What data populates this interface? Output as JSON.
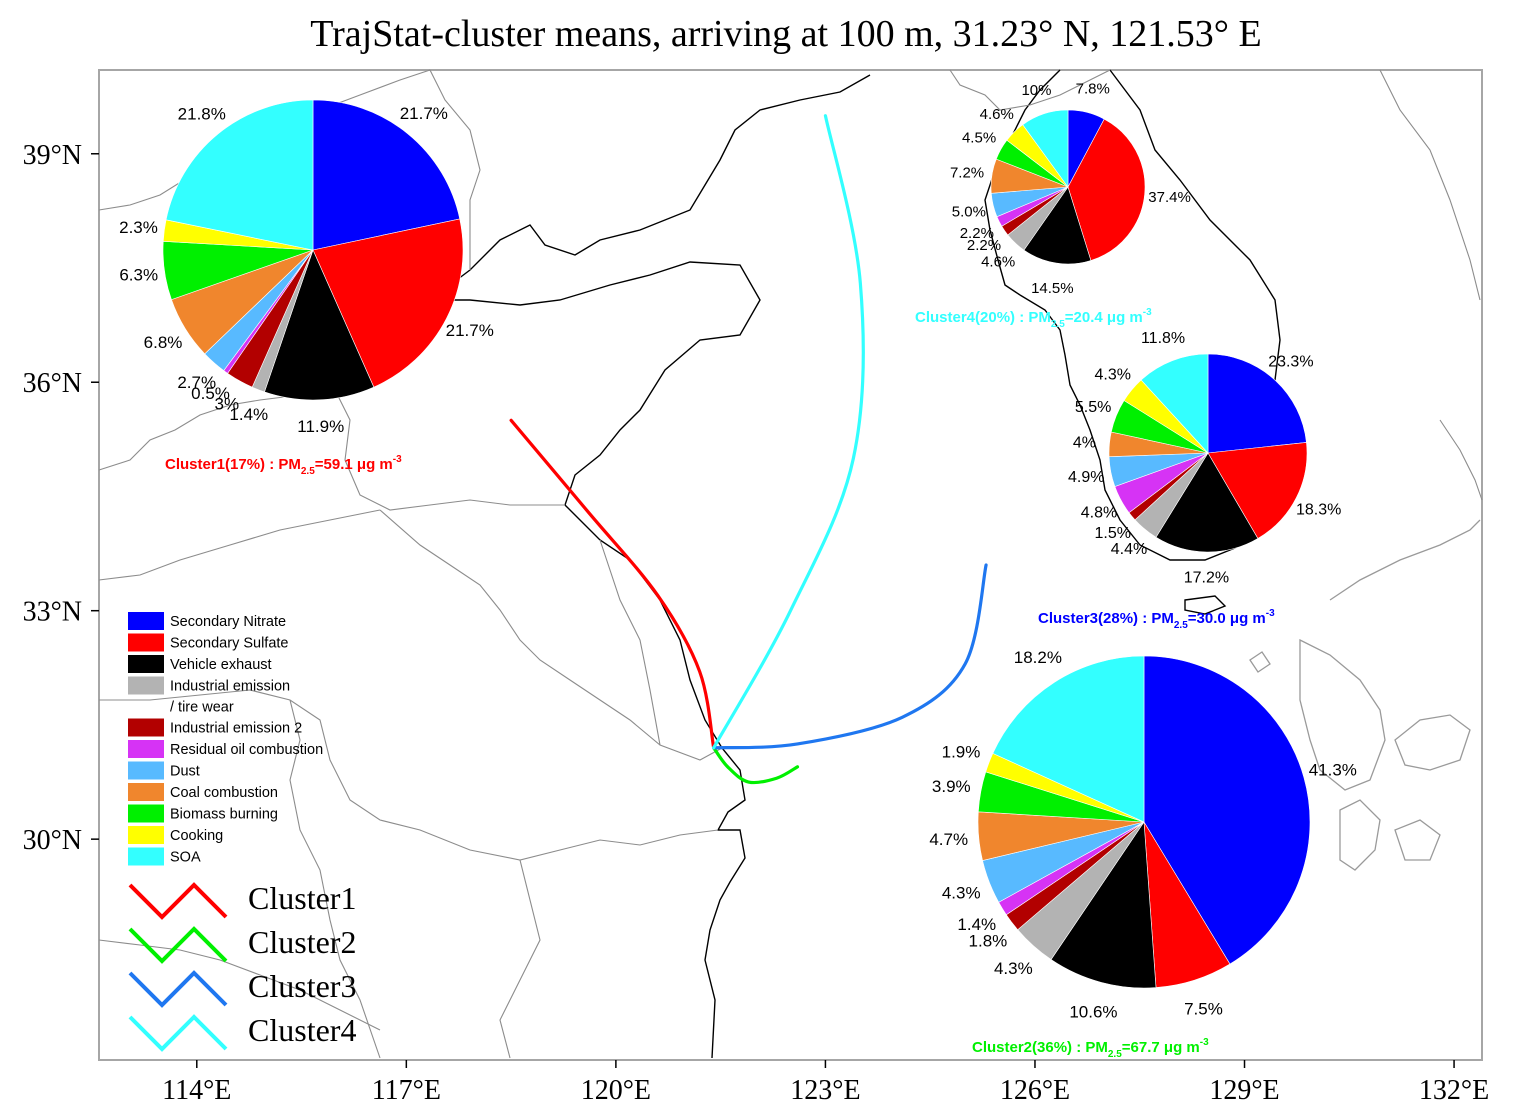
{
  "title": "TrajStat-cluster means, arriving at 100 m, 31.23° N, 121.53° E",
  "axes": {
    "x_ticks": [
      "114°E",
      "117°E",
      "120°E",
      "123°E",
      "126°E",
      "129°E",
      "132°E"
    ],
    "x_values": [
      114,
      117,
      120,
      123,
      126,
      129,
      132
    ],
    "y_ticks": [
      "39°N",
      "36°N",
      "33°N",
      "30°N"
    ],
    "y_values": [
      39,
      36,
      33,
      30
    ],
    "xlim": [
      112.6,
      132.4
    ],
    "ylim": [
      27.1,
      40.1
    ]
  },
  "colors": {
    "nitrate": "#0000ff",
    "sulfate": "#ff0000",
    "vehicle": "#000000",
    "industrial1": "#b3b3b3",
    "industrial2": "#b20000",
    "residual_oil": "#d633f5",
    "dust": "#58baff",
    "coal": "#f0862d",
    "biomass": "#00f000",
    "cooking": "#ffff00",
    "soa": "#33ffff",
    "cluster1": "#ff0000",
    "cluster2": "#00f000",
    "cluster3": "#1f77f0",
    "cluster4": "#33ffff",
    "coast": "#000000",
    "border": "#8c8c8c"
  },
  "legend": {
    "sources": [
      {
        "label": "Secondary Nitrate",
        "color": "#0000ff"
      },
      {
        "label": "Secondary Sulfate",
        "color": "#ff0000"
      },
      {
        "label": "Vehicle exhaust",
        "color": "#000000"
      },
      {
        "label": "Industrial emission",
        "label2": "/ tire wear",
        "color": "#b3b3b3"
      },
      {
        "label": "Industrial emission 2",
        "color": "#b20000"
      },
      {
        "label": "Residual  oil combustion",
        "color": "#d633f5"
      },
      {
        "label": "Dust",
        "color": "#58baff"
      },
      {
        "label": "Coal combustion",
        "color": "#f0862d"
      },
      {
        "label": "Biomass burning",
        "color": "#00f000"
      },
      {
        "label": "Cooking",
        "color": "#ffff00"
      },
      {
        "label": "SOA",
        "color": "#33ffff"
      }
    ],
    "clusters": [
      {
        "label": "Cluster1",
        "color": "#ff0000"
      },
      {
        "label": "Cluster2",
        "color": "#00f000"
      },
      {
        "label": "Cluster3",
        "color": "#1f77f0"
      },
      {
        "label": "Cluster4",
        "color": "#33ffff"
      }
    ]
  },
  "chart_data": [
    {
      "type": "pie",
      "name": "Cluster1",
      "caption": "Cluster1(17%) : PM2.5=59.1 μg m-3",
      "caption_color": "#ff0000",
      "categories": [
        "Secondary Nitrate",
        "Secondary Sulfate",
        "Vehicle exhaust",
        "Industrial emission / tire wear",
        "Industrial emission 2",
        "Residual oil combustion",
        "Dust",
        "Coal combustion",
        "Biomass burning",
        "Cooking",
        "SOA"
      ],
      "values": [
        21.7,
        21.7,
        11.9,
        1.4,
        3.0,
        0.5,
        2.7,
        6.8,
        6.3,
        2.3,
        21.8
      ],
      "labels": [
        "21.7%",
        "21.7%",
        "11.9%",
        "1.4%",
        "3%",
        "0.5%",
        "2.7%",
        "6.8%",
        "6.3%",
        "2.3%",
        "21.8%"
      ]
    },
    {
      "type": "pie",
      "name": "Cluster2",
      "caption": "Cluster2(36%) : PM2.5=67.7 μg m-3",
      "caption_color": "#00f000",
      "categories": [
        "Secondary Nitrate",
        "Secondary Sulfate",
        "Vehicle exhaust",
        "Industrial emission / tire wear",
        "Industrial emission 2",
        "Residual oil combustion",
        "Dust",
        "Coal combustion",
        "Biomass burning",
        "Cooking",
        "SOA"
      ],
      "values": [
        41.3,
        7.5,
        10.6,
        4.3,
        1.8,
        1.4,
        4.3,
        4.7,
        3.9,
        1.9,
        18.2
      ],
      "labels": [
        "41.3%",
        "7.5%",
        "10.6%",
        "4.3%",
        "1.8%",
        "1.4%",
        "4.3%",
        "4.7%",
        "3.9%",
        "1.9%",
        "18.2%"
      ]
    },
    {
      "type": "pie",
      "name": "Cluster3",
      "caption": "Cluster3(28%) : PM2.5=30.0 μg m-3",
      "caption_color": "#0000ff",
      "categories": [
        "Secondary Nitrate",
        "Secondary Sulfate",
        "Vehicle exhaust",
        "Industrial emission / tire wear",
        "Industrial emission 2",
        "Residual oil combustion",
        "Dust",
        "Coal combustion",
        "Biomass burning",
        "Cooking",
        "SOA"
      ],
      "values": [
        23.3,
        18.3,
        17.2,
        4.4,
        1.5,
        4.8,
        4.9,
        4.0,
        5.5,
        4.3,
        11.8
      ],
      "labels": [
        "23.3%",
        "18.3%",
        "17.2%",
        "4.4%",
        "1.5%",
        "4.8%",
        "4.9%",
        "4%",
        "5.5%",
        "4.3%",
        "11.8%"
      ]
    },
    {
      "type": "pie",
      "name": "Cluster4",
      "caption": "Cluster4(20%) : PM2.5=20.4 μg m-3",
      "caption_color": "#33ffff",
      "categories": [
        "Secondary Nitrate",
        "Secondary Sulfate",
        "Vehicle exhaust",
        "Industrial emission / tire wear",
        "Industrial emission 2",
        "Residual oil combustion",
        "Dust",
        "Coal combustion",
        "Biomass burning",
        "Cooking",
        "SOA"
      ],
      "values": [
        7.8,
        37.4,
        14.5,
        4.6,
        2.2,
        2.2,
        5.0,
        7.2,
        4.5,
        4.6,
        10.0
      ],
      "labels": [
        "7.8%",
        "37.4%",
        "14.5%",
        "4.6%",
        "2.2%",
        "2.2%",
        "5.0%",
        "7.2%",
        "4.5%",
        "4.6%",
        "10%"
      ]
    }
  ],
  "trajectories": [
    {
      "name": "Cluster1",
      "color": "#ff0000",
      "points": [
        [
          121.4,
          31.2
        ],
        [
          121.2,
          32.2
        ],
        [
          120.6,
          33.2
        ],
        [
          119.6,
          34.3
        ],
        [
          118.5,
          35.5
        ]
      ]
    },
    {
      "name": "Cluster2",
      "color": "#00f000",
      "points": [
        [
          121.4,
          31.2
        ],
        [
          121.6,
          30.95
        ],
        [
          121.9,
          30.75
        ],
        [
          122.3,
          30.8
        ],
        [
          122.6,
          30.95
        ]
      ]
    },
    {
      "name": "Cluster3",
      "color": "#1f77f0",
      "points": [
        [
          121.4,
          31.2
        ],
        [
          122.6,
          31.25
        ],
        [
          124.1,
          31.6
        ],
        [
          125.0,
          32.3
        ],
        [
          125.3,
          33.6
        ]
      ]
    },
    {
      "name": "Cluster4",
      "color": "#33ffff",
      "points": [
        [
          121.4,
          31.2
        ],
        [
          122.5,
          33.0
        ],
        [
          123.4,
          35.0
        ],
        [
          123.5,
          37.3
        ],
        [
          123.0,
          39.5
        ]
      ]
    }
  ]
}
